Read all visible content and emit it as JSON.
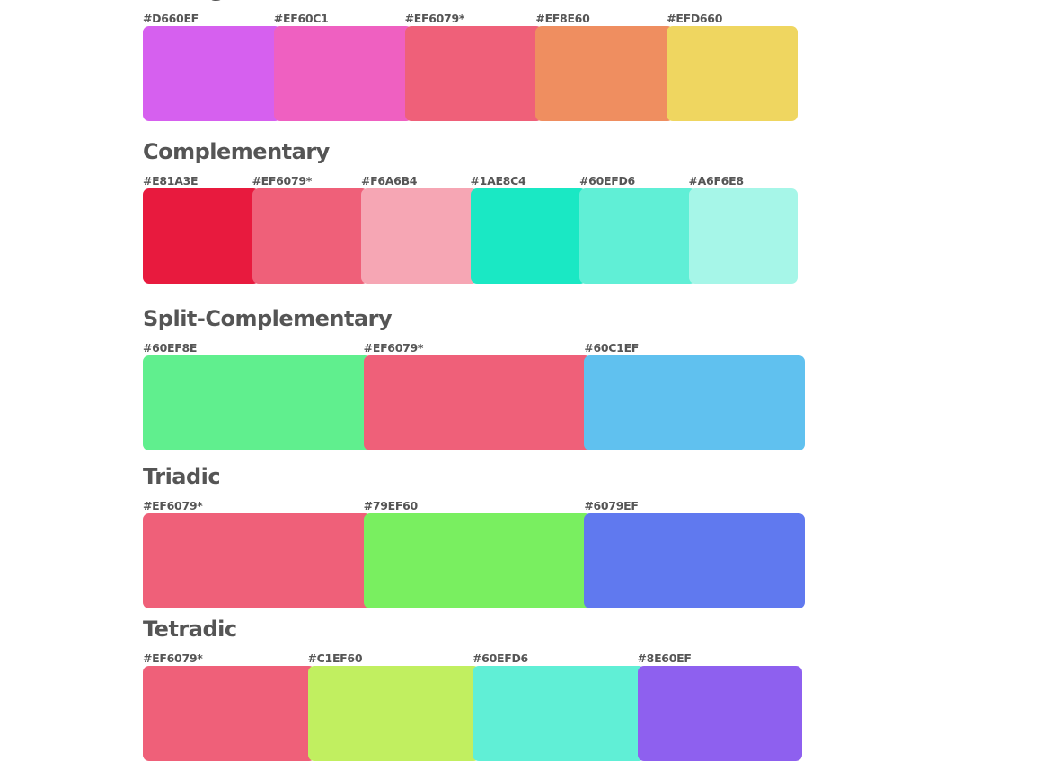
{
  "sections": [
    {
      "title": "Analogous",
      "swatches": [
        {
          "label": "#D660EF",
          "color": "#D660EF"
        },
        {
          "label": "#EF60C1",
          "color": "#EF60C1"
        },
        {
          "label": "#EF6079*",
          "color": "#EF6079"
        },
        {
          "label": "#EF8E60",
          "color": "#EF8E60"
        },
        {
          "label": "#EFD660",
          "color": "#EFD660"
        }
      ]
    },
    {
      "title": "Complementary",
      "swatches": [
        {
          "label": "#E81A3E",
          "color": "#E81A3E"
        },
        {
          "label": "#EF6079*",
          "color": "#EF6079"
        },
        {
          "label": "#F6A6B4",
          "color": "#F6A6B4"
        },
        {
          "label": "#1AE8C4",
          "color": "#1AE8C4"
        },
        {
          "label": "#60EFD6",
          "color": "#60EFD6"
        },
        {
          "label": "#A6F6E8",
          "color": "#A6F6E8"
        }
      ]
    },
    {
      "title": "Split-Complementary",
      "swatches": [
        {
          "label": "#60EF8E",
          "color": "#60EF8E"
        },
        {
          "label": "#EF6079*",
          "color": "#EF6079"
        },
        {
          "label": "#60C1EF",
          "color": "#60C1EF"
        }
      ]
    },
    {
      "title": "Triadic",
      "swatches": [
        {
          "label": "#EF6079*",
          "color": "#EF6079"
        },
        {
          "label": "#79EF60",
          "color": "#79EF60"
        },
        {
          "label": "#6079EF",
          "color": "#6079EF"
        }
      ]
    },
    {
      "title": "Tetradic",
      "swatches": [
        {
          "label": "#EF6079*",
          "color": "#EF6079"
        },
        {
          "label": "#C1EF60",
          "color": "#C1EF60"
        },
        {
          "label": "#60EFD6",
          "color": "#60EFD6"
        },
        {
          "label": "#8E60EF",
          "color": "#8E60EF"
        }
      ]
    }
  ]
}
